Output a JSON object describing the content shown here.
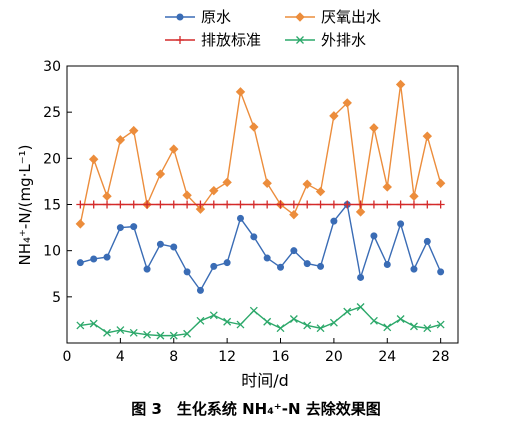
{
  "caption": "图 3　生化系统 NH₄⁺-N 去除效果图",
  "chart_data": {
    "type": "line",
    "xlabel": "时间/d",
    "ylabel": "NH₄⁺-N/(mg·L⁻¹)",
    "xlim": [
      0,
      29.3
    ],
    "ylim": [
      0,
      30
    ],
    "xticks": [
      0,
      4,
      8,
      12,
      16,
      20,
      24,
      28
    ],
    "yticks": [
      5,
      10,
      15,
      20,
      25,
      30
    ],
    "grid": false,
    "legend_position": "top",
    "x": [
      1,
      2,
      3,
      4,
      5,
      6,
      7,
      8,
      9,
      10,
      11,
      12,
      13,
      14,
      15,
      16,
      17,
      18,
      19,
      20,
      21,
      22,
      23,
      24,
      25,
      26,
      27,
      28
    ],
    "series": [
      {
        "name": "原水",
        "color": "#3a6cb5",
        "marker": "circle",
        "values": [
          8.7,
          9.1,
          9.3,
          12.5,
          12.6,
          8.0,
          10.7,
          10.4,
          7.7,
          5.7,
          8.3,
          8.7,
          13.5,
          11.5,
          9.2,
          8.2,
          10.0,
          8.6,
          8.3,
          13.2,
          15.0,
          7.1,
          11.6,
          8.5,
          12.9,
          8.0,
          11.0,
          7.7
        ]
      },
      {
        "name": "厌氧出水",
        "color": "#ec8d3c",
        "marker": "diamond",
        "values": [
          12.9,
          19.9,
          15.9,
          22.0,
          23.0,
          15.0,
          18.3,
          21.0,
          16.0,
          14.5,
          16.5,
          17.4,
          27.2,
          23.4,
          17.3,
          15.0,
          13.9,
          17.2,
          16.4,
          24.6,
          26.0,
          14.2,
          23.3,
          16.9,
          28.0,
          15.9,
          22.4,
          17.3
        ]
      },
      {
        "name": "排放标准",
        "color": "#d42a2a",
        "marker": "plus",
        "values": [
          15,
          15,
          15,
          15,
          15,
          15,
          15,
          15,
          15,
          15,
          15,
          15,
          15,
          15,
          15,
          15,
          15,
          15,
          15,
          15,
          15,
          15,
          15,
          15,
          15,
          15,
          15,
          15
        ]
      },
      {
        "name": "外排水",
        "color": "#2ca86a",
        "marker": "x",
        "values": [
          1.9,
          2.1,
          1.1,
          1.4,
          1.1,
          0.9,
          0.8,
          0.8,
          1.0,
          2.4,
          3.0,
          2.3,
          2.0,
          3.5,
          2.3,
          1.6,
          2.6,
          1.9,
          1.6,
          2.2,
          3.4,
          3.9,
          2.4,
          1.7,
          2.6,
          1.8,
          1.6,
          2.0
        ]
      }
    ]
  }
}
